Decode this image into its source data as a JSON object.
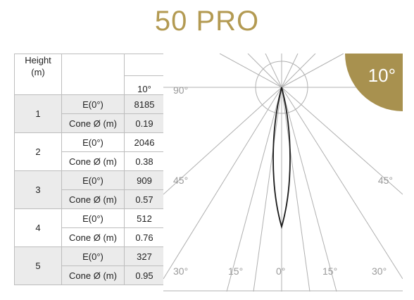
{
  "title": "50 PRO",
  "table": {
    "height_header": "Height",
    "height_unit": "(m)",
    "angle_header": "10°",
    "rows": [
      {
        "height": "1",
        "e_label": "E(0°)",
        "e_value": "8185",
        "cone_label": "Cone Ø (m)",
        "cone_value": "0.19"
      },
      {
        "height": "2",
        "e_label": "E(0°)",
        "e_value": "2046",
        "cone_label": "Cone Ø (m)",
        "cone_value": "0.38"
      },
      {
        "height": "3",
        "e_label": "E(0°)",
        "e_value": "909",
        "cone_label": "Cone Ø (m)",
        "cone_value": "0.57"
      },
      {
        "height": "4",
        "e_label": "E(0°)",
        "e_value": "512",
        "cone_label": "Cone Ø (m)",
        "cone_value": "0.76"
      },
      {
        "height": "5",
        "e_label": "E(0°)",
        "e_value": "327",
        "cone_label": "Cone Ø (m)",
        "cone_value": "0.95"
      }
    ]
  },
  "diagram": {
    "badge": "10°",
    "badge_color": "#a8914f",
    "labels": {
      "top_left": "90°",
      "mid_left": "45°",
      "mid_right": "45°",
      "bottom": [
        "30°",
        "15°",
        "0°",
        "15°",
        "30°"
      ]
    }
  }
}
